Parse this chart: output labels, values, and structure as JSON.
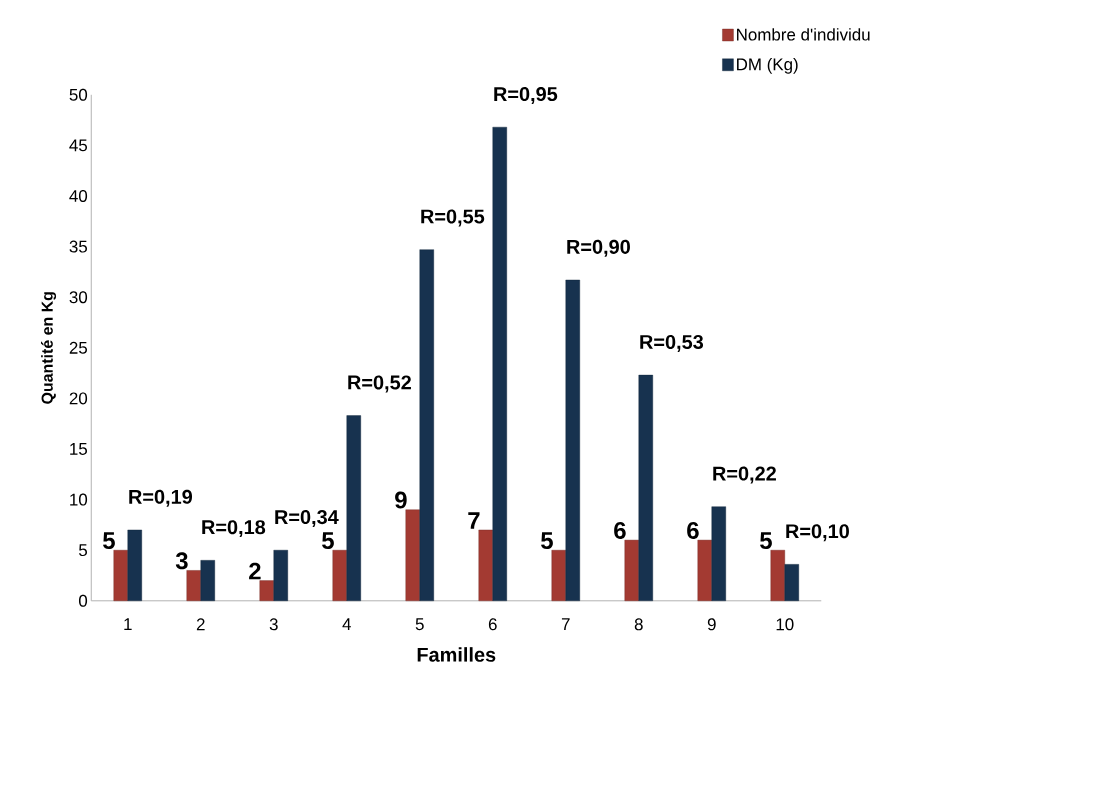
{
  "chart_data": {
    "type": "bar",
    "xlabel": "Familles",
    "ylabel": "Quantité en Kg",
    "categories": [
      "1",
      "2",
      "3",
      "4",
      "5",
      "6",
      "7",
      "8",
      "9",
      "10"
    ],
    "series": [
      {
        "name": "Nombre d'individu",
        "color": "#a33a32",
        "values": [
          5,
          3,
          2,
          5,
          9,
          7,
          5,
          6,
          6,
          5
        ],
        "value_labels": [
          "5",
          "3",
          "2",
          "5",
          "9",
          "7",
          "5",
          "6",
          "6",
          "5"
        ]
      },
      {
        "name": "DM (Kg)",
        "color": "#17324f",
        "values": [
          7,
          4,
          5,
          18.3,
          34.7,
          46.8,
          31.7,
          22.3,
          9.3,
          3.6
        ]
      }
    ],
    "annotations": [
      {
        "text": "R=0,19",
        "x": "1",
        "y": 7
      },
      {
        "text": "R=0,18",
        "x": "2",
        "y": 4
      },
      {
        "text": "R=0,34",
        "x": "3",
        "y": 5
      },
      {
        "text": "R=0,52",
        "x": "4",
        "y": 18.3
      },
      {
        "text": "R=0,55",
        "x": "5",
        "y": 34.7
      },
      {
        "text": "R=0,95",
        "x": "6",
        "y": 46.8
      },
      {
        "text": "R=0,90",
        "x": "7",
        "y": 31.7
      },
      {
        "text": "R=0,53",
        "x": "8",
        "y": 22.3
      },
      {
        "text": "R=0,22",
        "x": "9",
        "y": 9.3
      },
      {
        "text": "R=0,10",
        "x": "10",
        "y": 3.6
      }
    ],
    "ylim": [
      0,
      50
    ],
    "yticks": [
      0,
      5,
      10,
      15,
      20,
      25,
      30,
      35,
      40,
      45,
      50
    ],
    "grid": false,
    "legend": "top right"
  }
}
